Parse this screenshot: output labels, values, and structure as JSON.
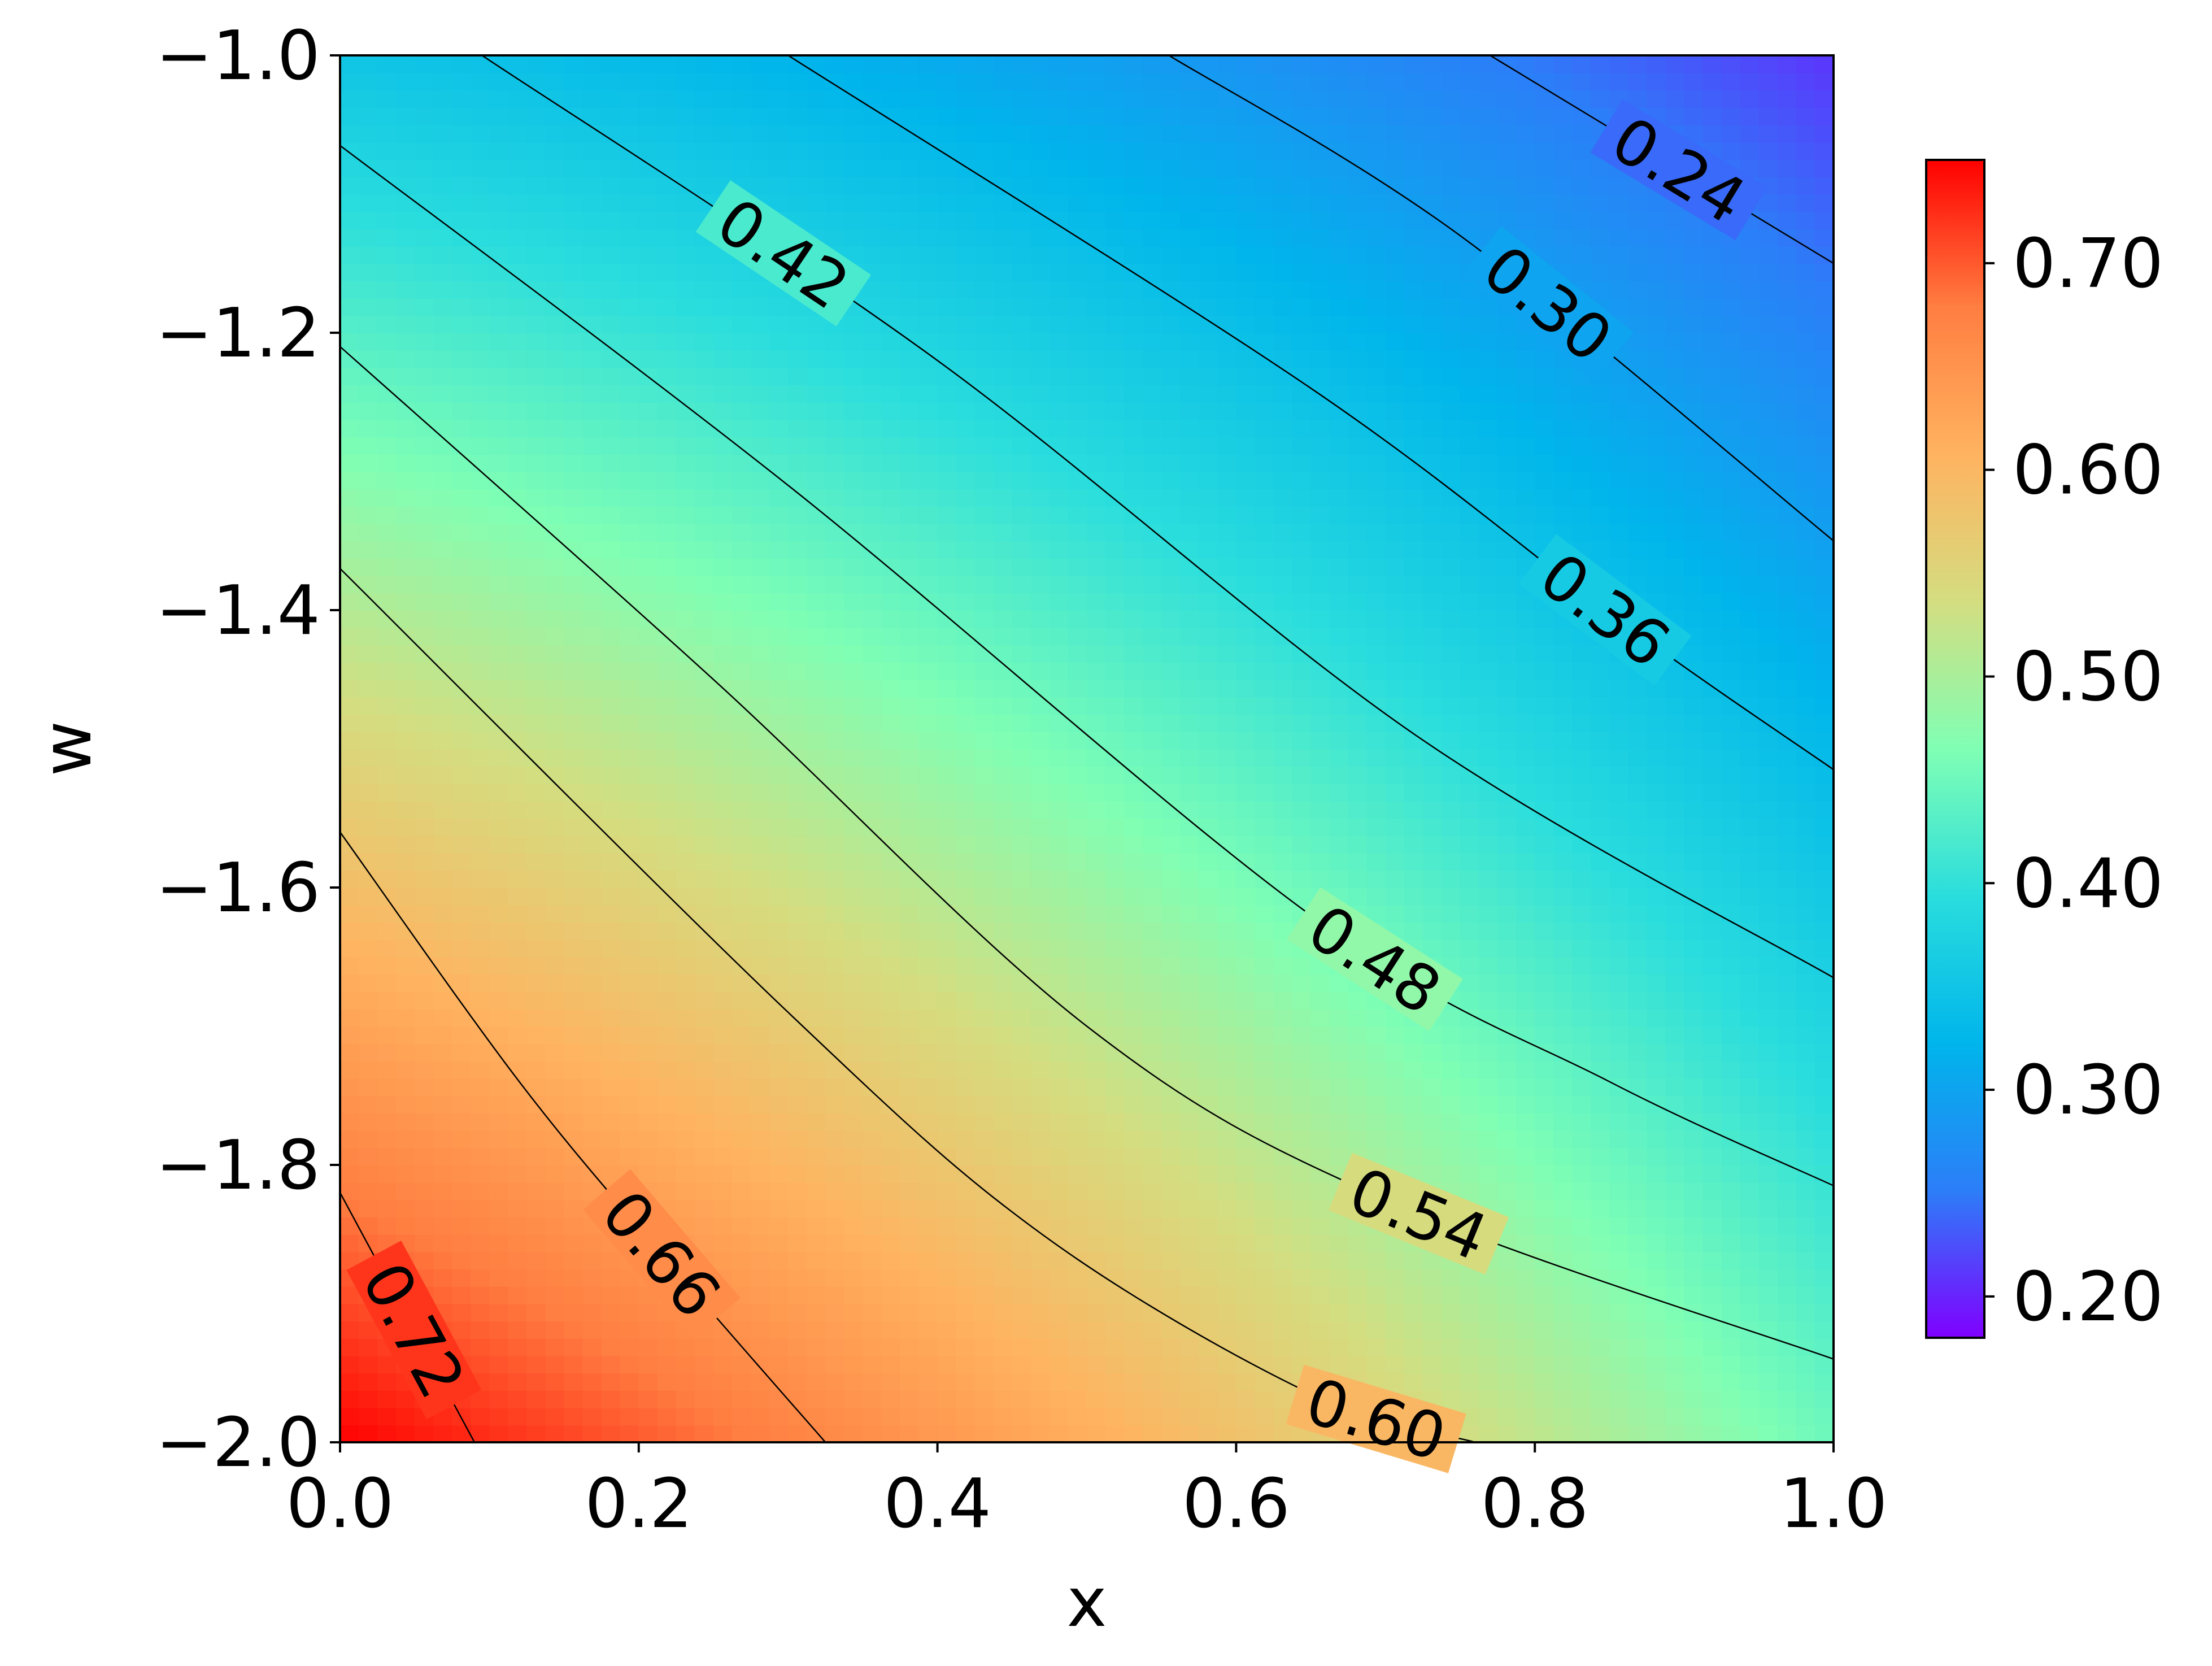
{
  "chart_data": {
    "type": "heatmap",
    "subtype": "filled-contour",
    "xlabel": "x",
    "ylabel": "w",
    "xlim": [
      0.0,
      1.0
    ],
    "ylim": [
      -2.0,
      -1.0
    ],
    "x_ticks": [
      "0.0",
      "0.2",
      "0.4",
      "0.6",
      "0.8",
      "1.0"
    ],
    "y_ticks": [
      "−1.0",
      "−1.2",
      "−1.4",
      "−1.6",
      "−1.8",
      "−2.0"
    ],
    "colormap": "rainbow",
    "colormap_stops": [
      "#8000ff",
      "#2c7ef8",
      "#00b5eb",
      "#2adddd",
      "#80ffb4",
      "#d4dd80",
      "#ffb360",
      "#ff7e41",
      "#ff0000"
    ],
    "value_range": [
      0.18,
      0.75
    ],
    "colorbar_ticks": [
      "0.70",
      "0.60",
      "0.50",
      "0.40",
      "0.30",
      "0.20"
    ],
    "contour_levels": [
      0.24,
      0.3,
      0.36,
      0.42,
      0.48,
      0.54,
      0.6,
      0.66,
      0.72
    ],
    "contour_labels": [
      "0.24",
      "0.30",
      "0.36",
      "0.42",
      "0.48",
      "0.54",
      "0.60",
      "0.66",
      "0.72"
    ],
    "contour_lines": [
      {
        "level": 0.24,
        "points": [
          [
            0.77,
            -1.0
          ],
          [
            1.0,
            -1.15
          ]
        ]
      },
      {
        "level": 0.3,
        "points": [
          [
            0.555,
            -1.0
          ],
          [
            0.75,
            -1.13
          ],
          [
            1.0,
            -1.35
          ]
        ]
      },
      {
        "level": 0.36,
        "points": [
          [
            0.3,
            -1.0
          ],
          [
            0.65,
            -1.24
          ],
          [
            0.86,
            -1.41
          ],
          [
            1.0,
            -1.515
          ]
        ]
      },
      {
        "level": 0.42,
        "points": [
          [
            0.095,
            -1.0
          ],
          [
            0.4,
            -1.22
          ],
          [
            0.72,
            -1.49
          ],
          [
            1.0,
            -1.665
          ]
        ]
      },
      {
        "level": 0.48,
        "points": [
          [
            0.0,
            -1.065
          ],
          [
            0.3,
            -1.31
          ],
          [
            0.65,
            -1.62
          ],
          [
            0.85,
            -1.74
          ],
          [
            1.0,
            -1.815
          ]
        ]
      },
      {
        "level": 0.54,
        "points": [
          [
            0.0,
            -1.21
          ],
          [
            0.25,
            -1.45
          ],
          [
            0.5,
            -1.7
          ],
          [
            0.7,
            -1.825
          ],
          [
            1.0,
            -1.94
          ]
        ]
      },
      {
        "level": 0.6,
        "points": [
          [
            0.0,
            -1.37
          ],
          [
            0.3,
            -1.69
          ],
          [
            0.47,
            -1.85
          ],
          [
            0.65,
            -1.965
          ],
          [
            0.76,
            -2.0
          ]
        ]
      },
      {
        "level": 0.66,
        "points": [
          [
            0.0,
            -1.56
          ],
          [
            0.12,
            -1.74
          ],
          [
            0.22,
            -1.87
          ],
          [
            0.325,
            -2.0
          ]
        ]
      },
      {
        "level": 0.72,
        "points": [
          [
            0.0,
            -1.82
          ],
          [
            0.06,
            -1.94
          ],
          [
            0.09,
            -2.0
          ]
        ]
      }
    ]
  }
}
